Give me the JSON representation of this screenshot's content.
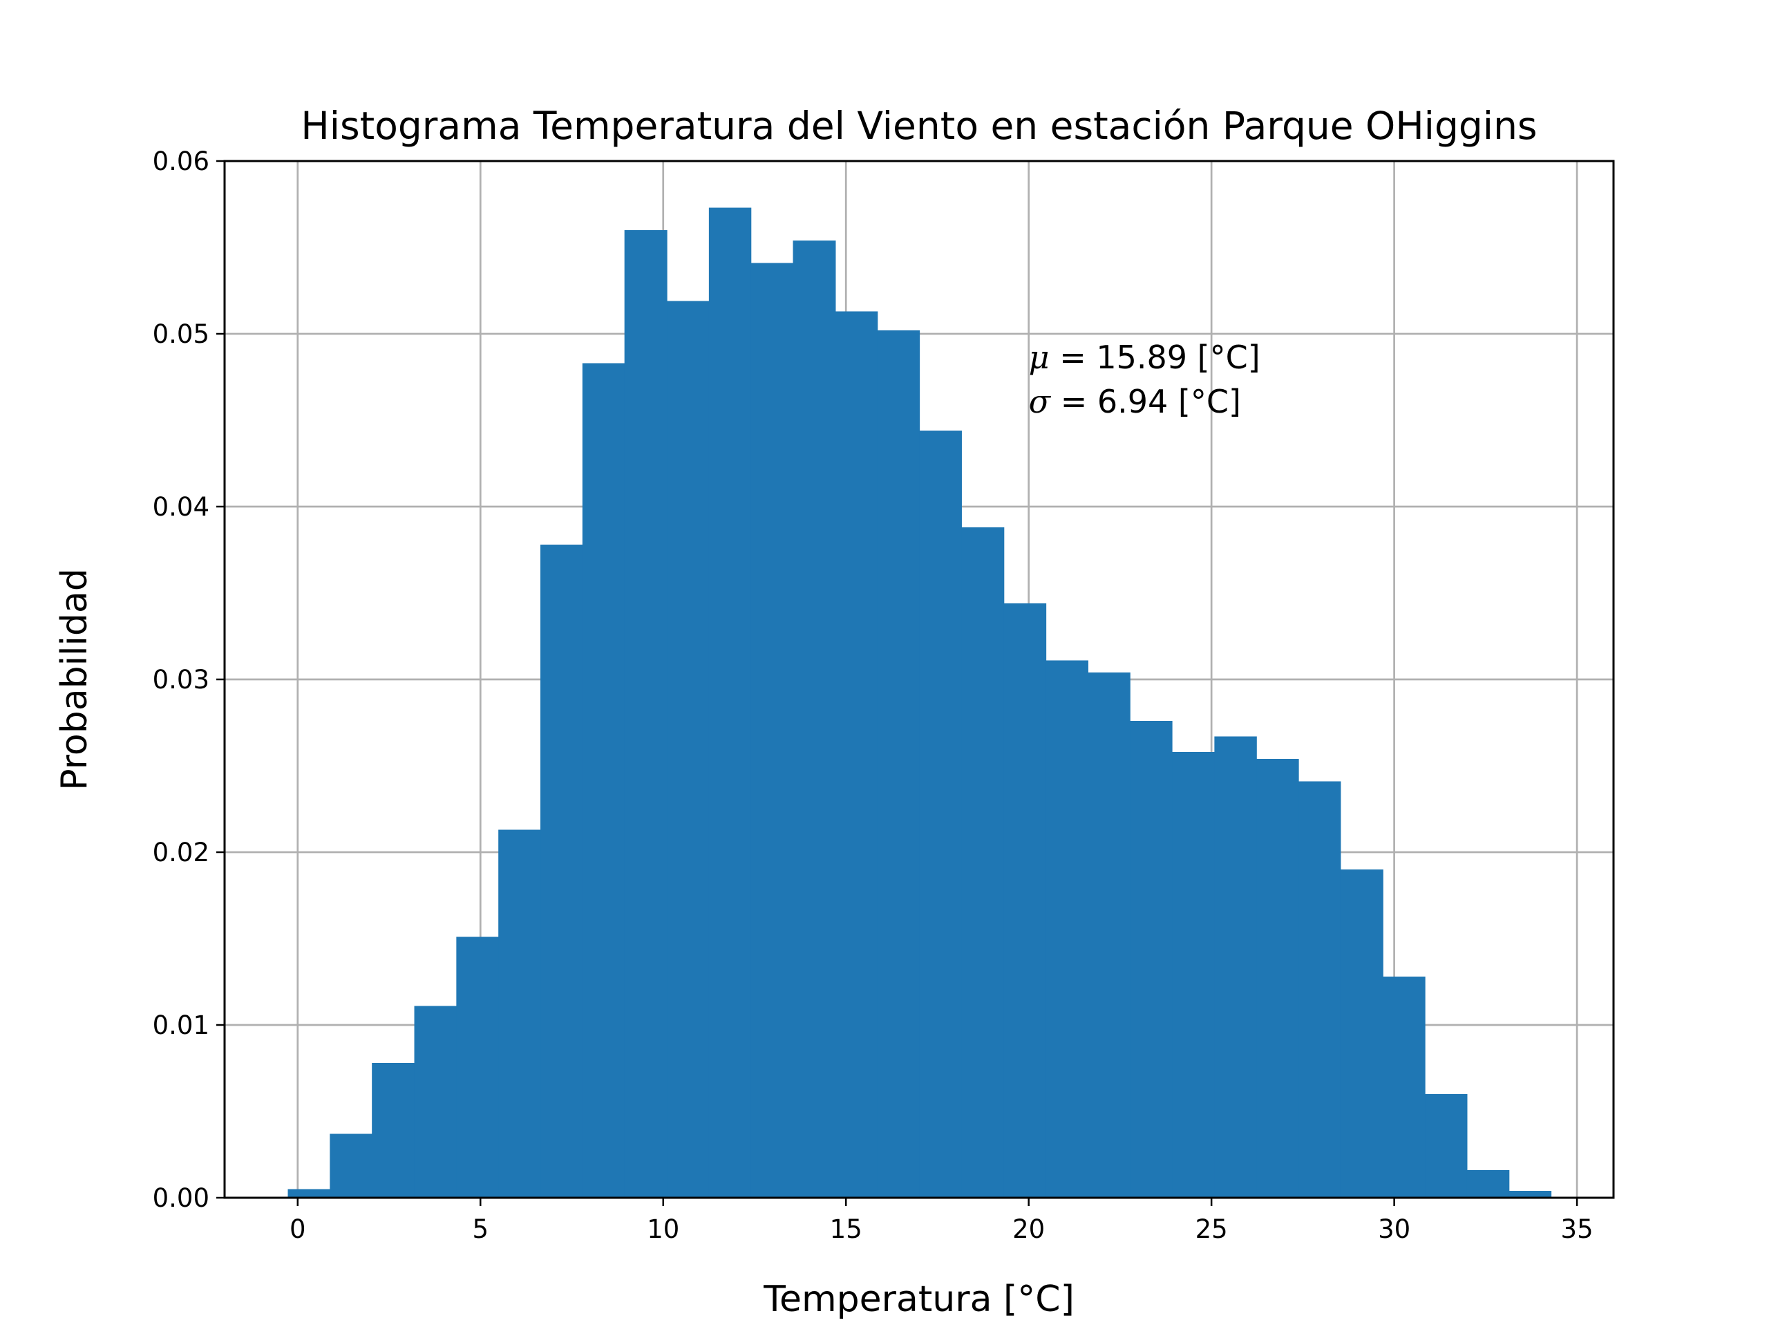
{
  "chart_data": {
    "type": "bar",
    "title": "Histograma Temperatura del Viento en estación Parque OHiggins",
    "xlabel": "Temperatura [°C]",
    "ylabel": "Probabilidad",
    "xlim": [
      -2,
      36
    ],
    "ylim": [
      0,
      0.06
    ],
    "x_ticks": [
      0,
      5,
      10,
      15,
      20,
      25,
      30,
      35
    ],
    "x_tick_labels": [
      "0",
      "5",
      "10",
      "15",
      "20",
      "25",
      "30",
      "35"
    ],
    "y_ticks": [
      0,
      0.01,
      0.02,
      0.03,
      0.04,
      0.05,
      0.06
    ],
    "y_tick_labels": [
      "0.00",
      "0.01",
      "0.02",
      "0.03",
      "0.04",
      "0.05",
      "0.06"
    ],
    "grid": true,
    "bar_color": "#1f77b4",
    "bin_edges": [
      -0.27,
      0.88,
      2.03,
      3.19,
      4.34,
      5.49,
      6.64,
      7.79,
      8.94,
      10.1,
      11.25,
      12.4,
      13.55,
      14.71,
      15.86,
      17.01,
      18.16,
      19.32,
      20.47,
      21.62,
      22.77,
      23.92,
      25.08,
      26.23,
      27.38,
      28.53,
      29.69,
      30.84,
      31.99,
      33.14,
      34.29
    ],
    "values": [
      0.0005,
      0.0037,
      0.0078,
      0.0111,
      0.0151,
      0.0213,
      0.0378,
      0.0483,
      0.056,
      0.0519,
      0.0573,
      0.0541,
      0.0554,
      0.0513,
      0.0502,
      0.0444,
      0.0388,
      0.0344,
      0.0311,
      0.0304,
      0.0276,
      0.0258,
      0.0267,
      0.0254,
      0.0241,
      0.019,
      0.0128,
      0.006,
      0.0016,
      0.0004
    ],
    "annotation": {
      "mu_symbol": "μ",
      "mu_text": " = 15.89 [°C]",
      "sigma_symbol": "σ",
      "sigma_text": " = 6.94 [°C]"
    }
  }
}
